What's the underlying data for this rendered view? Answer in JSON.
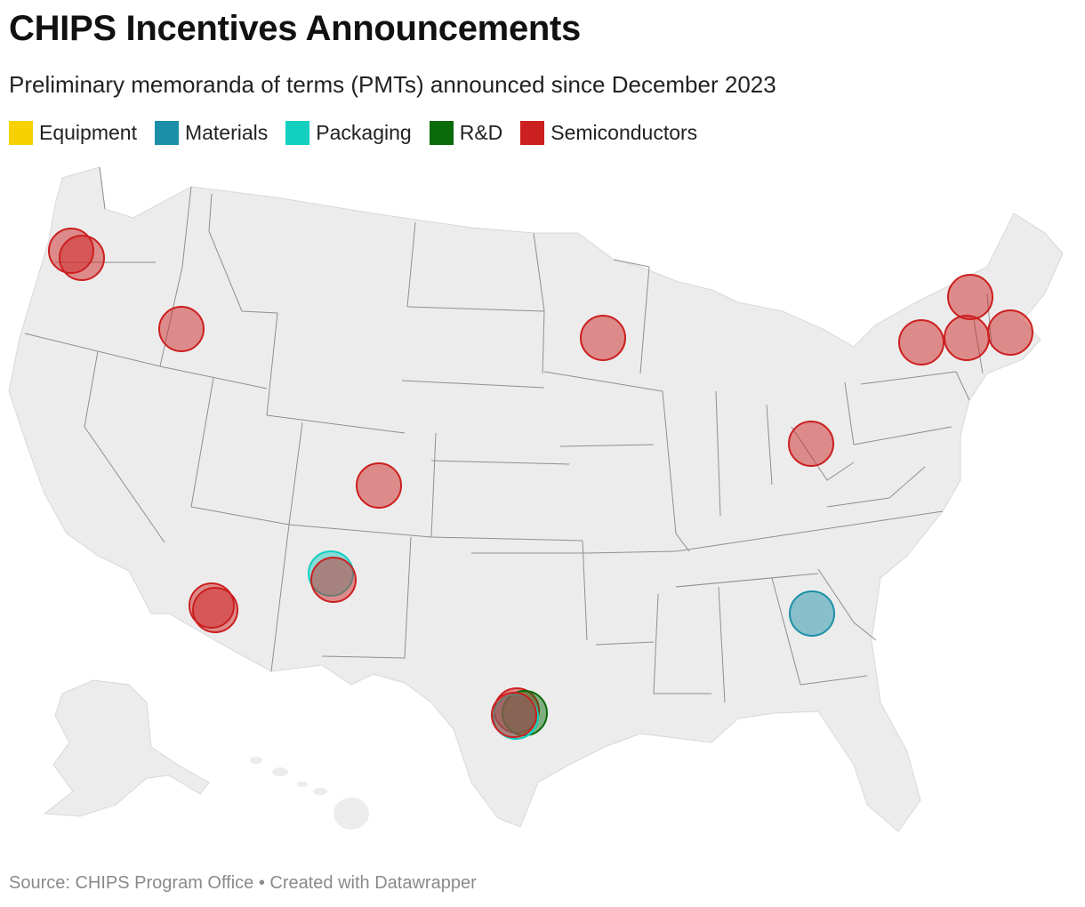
{
  "header": {
    "title": "CHIPS Incentives Announcements",
    "subtitle": "Preliminary memoranda of terms (PMTs) announced since December 2023"
  },
  "legend": [
    {
      "label": "Equipment",
      "color": "#f7d200"
    },
    {
      "label": "Materials",
      "color": "#1b8fa8"
    },
    {
      "label": "Packaging",
      "color": "#12cfc0"
    },
    {
      "label": "R&D",
      "color": "#0a6b0a"
    },
    {
      "label": "Semiconductors",
      "color": "#cc1f1f"
    }
  ],
  "map": {
    "land_color": "#ececec",
    "border_color": "#8f8f8f"
  },
  "markers": [
    {
      "category": "Semiconductors",
      "location": "Oregon"
    },
    {
      "category": "Semiconductors",
      "location": "Oregon"
    },
    {
      "category": "Semiconductors",
      "location": "Idaho"
    },
    {
      "category": "Semiconductors",
      "location": "Colorado"
    },
    {
      "category": "Semiconductors",
      "location": "Arizona"
    },
    {
      "category": "Semiconductors",
      "location": "Arizona"
    },
    {
      "category": "Packaging",
      "location": "New Mexico"
    },
    {
      "category": "Semiconductors",
      "location": "New Mexico"
    },
    {
      "category": "Semiconductors",
      "location": "Minnesota"
    },
    {
      "category": "Semiconductors",
      "location": "Ohio"
    },
    {
      "category": "Semiconductors",
      "location": "New York"
    },
    {
      "category": "Semiconductors",
      "location": "New York"
    },
    {
      "category": "Semiconductors",
      "location": "New York"
    },
    {
      "category": "Semiconductors",
      "location": "Massachusetts"
    },
    {
      "category": "Materials",
      "location": "Georgia"
    },
    {
      "category": "Semiconductors",
      "location": "Texas"
    },
    {
      "category": "R&D",
      "location": "Texas"
    },
    {
      "category": "Packaging",
      "location": "Texas"
    },
    {
      "category": "Semiconductors",
      "location": "Texas"
    }
  ],
  "footer": {
    "source": "Source: CHIPS Program Office • Created with Datawrapper"
  }
}
